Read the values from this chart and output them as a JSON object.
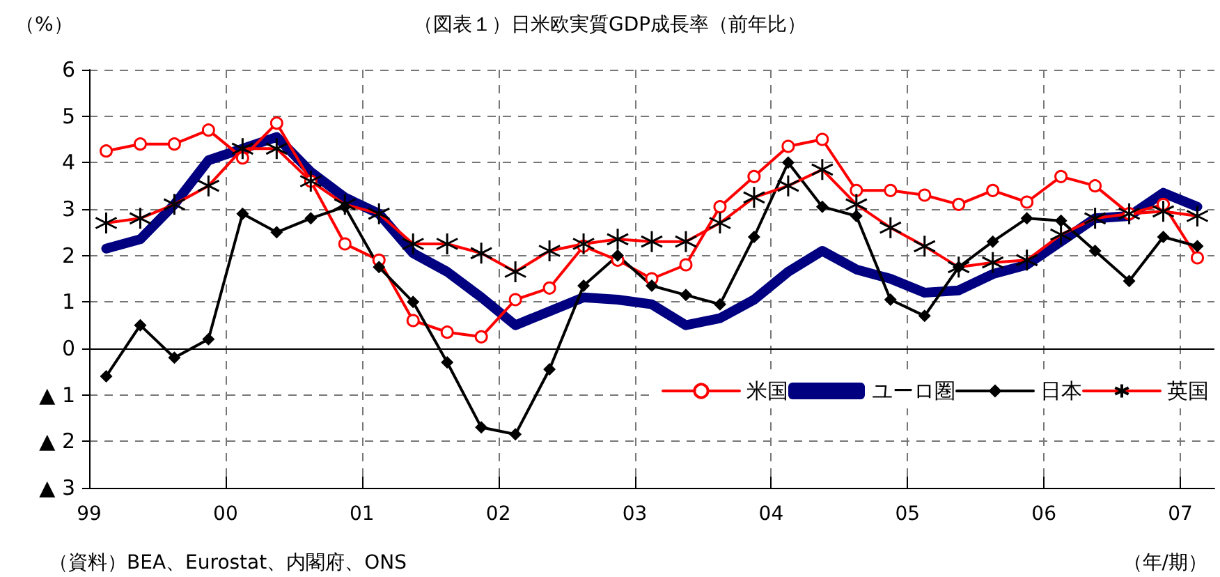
{
  "chart_data": {
    "type": "line",
    "title": "（図表１）日米欧実質GDP成長率（前年比）",
    "ylabel": "（%）",
    "xlabel": "（年/期）",
    "annotations": [
      "（資料）BEA、Eurostat、内閣府、ONS"
    ],
    "x": [
      1999.125,
      1999.375,
      1999.625,
      1999.875,
      2000.125,
      2000.375,
      2000.625,
      2000.875,
      2001.125,
      2001.375,
      2001.625,
      2001.875,
      2002.125,
      2002.375,
      2002.625,
      2002.875,
      2003.125,
      2003.375,
      2003.625,
      2003.875,
      2004.125,
      2004.375,
      2004.625,
      2004.875,
      2005.125,
      2005.375,
      2005.625,
      2005.875,
      2006.125,
      2006.375,
      2006.625,
      2006.875,
      2007.125
    ],
    "series": [
      {
        "name": "米国",
        "color": "#ff0000",
        "marker": "circle",
        "values": [
          4.25,
          4.4,
          4.4,
          4.7,
          4.1,
          4.85,
          3.6,
          2.25,
          1.9,
          0.6,
          0.35,
          0.25,
          1.05,
          1.3,
          2.2,
          1.9,
          1.5,
          1.8,
          3.05,
          3.7,
          4.35,
          4.5,
          3.4,
          3.4,
          3.3,
          3.1,
          3.4,
          3.15,
          3.7,
          3.5,
          2.9,
          3.1,
          1.95
        ]
      },
      {
        "name": "ユーロ圏",
        "color": "#000080",
        "marker": "none",
        "values": [
          2.15,
          2.35,
          3.1,
          4.05,
          4.3,
          4.55,
          3.8,
          3.25,
          2.9,
          2.05,
          1.65,
          1.1,
          0.5,
          0.8,
          1.1,
          1.05,
          0.95,
          0.5,
          0.65,
          1.05,
          1.65,
          2.1,
          1.7,
          1.5,
          1.2,
          1.25,
          1.6,
          1.8,
          2.3,
          2.8,
          2.85,
          3.35,
          3.05
        ]
      },
      {
        "name": "日本",
        "color": "#000000",
        "marker": "diamond",
        "values": [
          -0.6,
          0.5,
          -0.2,
          0.2,
          2.9,
          2.5,
          2.8,
          3.05,
          1.75,
          1.0,
          -0.3,
          -1.7,
          -1.85,
          -0.45,
          1.35,
          2.0,
          1.35,
          1.15,
          0.95,
          2.4,
          4.0,
          3.05,
          2.85,
          1.05,
          0.7,
          1.75,
          2.3,
          2.8,
          2.75,
          2.1,
          1.45,
          2.4,
          2.2
        ]
      },
      {
        "name": "英国",
        "color": "#ff0000",
        "marker": "cross",
        "values": [
          2.7,
          2.8,
          3.1,
          3.5,
          4.3,
          4.3,
          3.6,
          3.1,
          2.9,
          2.25,
          2.25,
          2.05,
          1.65,
          2.1,
          2.25,
          2.35,
          2.3,
          2.3,
          2.7,
          3.25,
          3.5,
          3.85,
          3.1,
          2.6,
          2.2,
          1.75,
          1.85,
          1.9,
          2.45,
          2.8,
          2.9,
          2.95,
          2.85
        ]
      }
    ],
    "xlim": [
      1999,
      2007.25
    ],
    "xticks": [
      {
        "value": 1999,
        "label": "99"
      },
      {
        "value": 2000,
        "label": "00"
      },
      {
        "value": 2001,
        "label": "01"
      },
      {
        "value": 2002,
        "label": "02"
      },
      {
        "value": 2003,
        "label": "03"
      },
      {
        "value": 2004,
        "label": "04"
      },
      {
        "value": 2005,
        "label": "05"
      },
      {
        "value": 2006,
        "label": "06"
      },
      {
        "value": 2007,
        "label": "07"
      }
    ],
    "ylim": [
      -3,
      6
    ],
    "yticks": [
      {
        "value": -3,
        "label": "▲ 3"
      },
      {
        "value": -2,
        "label": "▲ 2"
      },
      {
        "value": -1,
        "label": "▲ 1"
      },
      0,
      1,
      2,
      3,
      4,
      5,
      6
    ],
    "ref_lines": [
      {
        "axis": "y",
        "value": 0,
        "color": "#000000"
      }
    ],
    "grid": true,
    "legend": "bottom right",
    "line_style": "solid"
  }
}
